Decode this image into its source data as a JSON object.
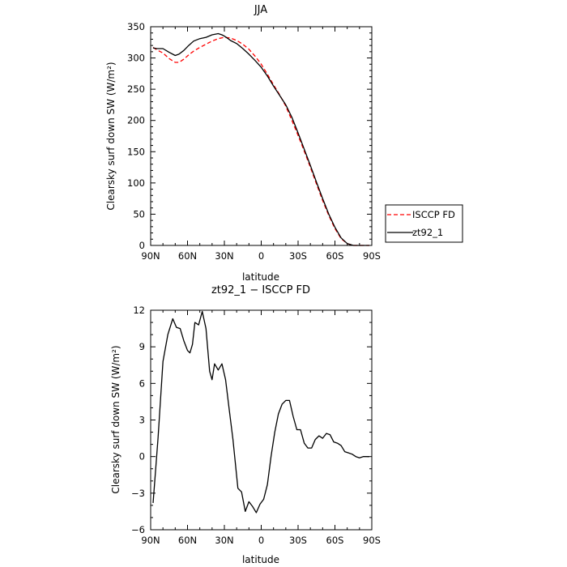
{
  "chart_data": [
    {
      "type": "line",
      "title": "JJA",
      "xlabel": "latitude",
      "ylabel": "Clearsky surf down SW (W/m²)",
      "xlim": [
        90,
        -90
      ],
      "ylim": [
        0,
        350
      ],
      "x_ticks": [
        90,
        60,
        30,
        0,
        -30,
        -60,
        -90
      ],
      "x_tick_labels": [
        "90N",
        "60N",
        "30N",
        "0",
        "30S",
        "60S",
        "90S"
      ],
      "y_ticks": [
        0,
        50,
        100,
        150,
        200,
        250,
        300,
        350
      ],
      "y_tick_labels": [
        "0",
        "50",
        "100",
        "150",
        "200",
        "250",
        "300",
        "350"
      ],
      "legend_position": "right",
      "series": [
        {
          "name": "ISCCP FD",
          "color": "#ff0000",
          "dash": "dashed",
          "x": [
            88,
            85,
            80,
            75,
            70,
            67,
            63,
            59,
            55,
            50,
            45,
            40,
            35,
            30,
            25,
            20,
            15,
            10,
            5,
            0,
            -5,
            -10,
            -15,
            -20,
            -25,
            -30,
            -35,
            -40,
            -45,
            -50,
            -55,
            -60,
            -65,
            -70,
            -75,
            -80,
            -85,
            -88
          ],
          "y": [
            317,
            313,
            308,
            299,
            293,
            293,
            298,
            305,
            311,
            317,
            322,
            327,
            331,
            333,
            332,
            328,
            322,
            314,
            303,
            290,
            274,
            257,
            241,
            223,
            200,
            176,
            151,
            125,
            98,
            72,
            48,
            27,
            11,
            3,
            0,
            0,
            0,
            0
          ]
        },
        {
          "name": "zt92_1",
          "color": "#000000",
          "dash": "solid",
          "x": [
            88,
            85,
            80,
            75,
            70,
            67,
            63,
            59,
            55,
            50,
            45,
            40,
            35,
            32,
            30,
            27,
            25,
            20,
            15,
            10,
            5,
            0,
            -5,
            -10,
            -15,
            -20,
            -25,
            -30,
            -35,
            -40,
            -45,
            -50,
            -55,
            -60,
            -65,
            -70,
            -75,
            -80,
            -85,
            -88
          ],
          "y": [
            316,
            315,
            315,
            309,
            304,
            306,
            312,
            320,
            327,
            331,
            333,
            337,
            339,
            337,
            335,
            331,
            328,
            323,
            315,
            306,
            296,
            285,
            271,
            255,
            240,
            225,
            205,
            180,
            154,
            128,
            101,
            75,
            50,
            29,
            12,
            3,
            0,
            0,
            0,
            0
          ]
        }
      ]
    },
    {
      "type": "line",
      "title": "zt92_1 − ISCCP FD",
      "xlabel": "latitude",
      "ylabel": "Clearsky surf down SW (W/m²)",
      "xlim": [
        90,
        -90
      ],
      "ylim": [
        -6,
        12
      ],
      "x_ticks": [
        90,
        60,
        30,
        0,
        -30,
        -60,
        -90
      ],
      "x_tick_labels": [
        "90N",
        "60N",
        "30N",
        "0",
        "30S",
        "60S",
        "90S"
      ],
      "y_ticks": [
        -6,
        -3,
        0,
        3,
        6,
        9,
        12
      ],
      "y_tick_labels": [
        "−6",
        "−3",
        "0",
        "3",
        "6",
        "9",
        "12"
      ],
      "series": [
        {
          "color": "#000000",
          "dash": "solid",
          "x": [
            88,
            84,
            80,
            76,
            72,
            69,
            66,
            63,
            60,
            58,
            56,
            54,
            51,
            48,
            45,
            42,
            40,
            38,
            35,
            32,
            29,
            26,
            23,
            19,
            16,
            13,
            10,
            7,
            4,
            1,
            -2,
            -5,
            -8,
            -11,
            -14,
            -17,
            -20,
            -23,
            -26,
            -29,
            -32,
            -35,
            -38,
            -41,
            -44,
            -47,
            -50,
            -53,
            -56,
            -59,
            -62,
            -65,
            -68,
            -71,
            -74,
            -77,
            -80,
            -83,
            -88
          ],
          "y": [
            -3.8,
            1.5,
            7.8,
            10,
            11.3,
            10.6,
            10.5,
            9.5,
            8.7,
            8.5,
            9.2,
            11,
            10.8,
            11.9,
            10.5,
            7,
            6.3,
            7.6,
            7.1,
            7.6,
            6.3,
            3.8,
            1.4,
            -2.6,
            -2.9,
            -4.5,
            -3.7,
            -4.1,
            -4.6,
            -3.9,
            -3.5,
            -2.3,
            0,
            2,
            3.5,
            4.3,
            4.6,
            4.6,
            3.3,
            2.2,
            2.2,
            1.1,
            0.7,
            0.7,
            1.4,
            1.7,
            1.5,
            1.9,
            1.8,
            1.2,
            1.1,
            0.9,
            0.4,
            0.3,
            0.2,
            0,
            -0.1,
            0,
            0
          ]
        }
      ]
    }
  ]
}
